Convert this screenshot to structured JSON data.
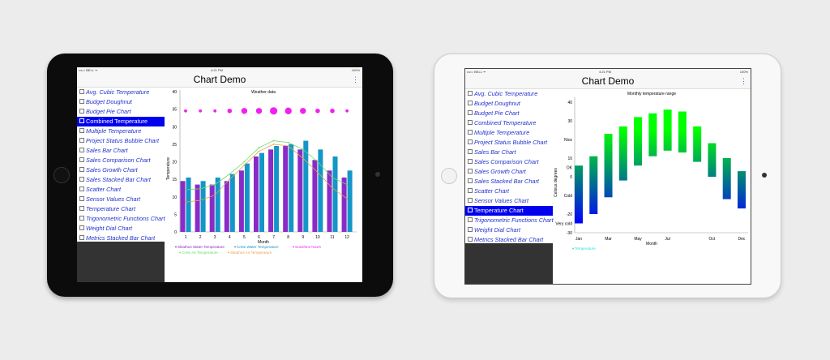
{
  "status": {
    "carrier": "••••○ BELL ᯤ",
    "time": "4:21 PM",
    "battery": "100%"
  },
  "app_title": "Chart Demo",
  "menu_icon": "vertical-dots-icon",
  "sidebar_items": [
    "Avg. Cubic Temperature",
    "Budget Doughnut",
    "Budget Pie Chart",
    "Combined Temperature",
    "Multiple Temperature",
    "Project Status Bubble Chart",
    "Sales Bar Chart",
    "Sales Comparison Chart",
    "Sales Growth Chart",
    "Sales Stacked Bar Chart",
    "Scatter Chart",
    "Sensor Values Chart",
    "Temperature Chart",
    "Trigonometric Functions Chart",
    "Weight Dial Chart",
    "Metrics Stacked Bar Chart"
  ],
  "left_device": {
    "selected": "Combined Temperature"
  },
  "right_device": {
    "selected": "Temperature Chart"
  },
  "chart_data": [
    {
      "type": "bar",
      "title": "Weather data",
      "xlabel": "Month",
      "ylabel": "Temperature",
      "ylim": [
        0,
        40
      ],
      "yticks": [
        0,
        5,
        10,
        15,
        20,
        25,
        30,
        35,
        40
      ],
      "categories": [
        "1",
        "2",
        "3",
        "4",
        "5",
        "6",
        "7",
        "8",
        "9",
        "10",
        "11",
        "12"
      ],
      "series": [
        {
          "name": "Skiathos Water Temperature",
          "kind": "bar",
          "color": "#8a2bc8",
          "values": [
            14.5,
            13.5,
            13.5,
            14.5,
            17.5,
            21.5,
            23.5,
            24.5,
            23.5,
            20.5,
            17.5,
            15.5
          ]
        },
        {
          "name": "Crete Water Temperature",
          "kind": "bar",
          "color": "#1396c8",
          "values": [
            15.5,
            14.5,
            15.5,
            16.5,
            19.5,
            22.5,
            24.5,
            25,
            26,
            23.5,
            21.5,
            17.5
          ]
        },
        {
          "name": "Sunshine hours",
          "kind": "bubble",
          "color": "#ee22ee",
          "y": 34.5,
          "sizes": [
            1,
            1,
            1,
            2,
            3,
            3,
            4,
            3.5,
            3,
            2,
            2,
            1
          ]
        },
        {
          "name": "Crete Air Temperature",
          "kind": "line",
          "color": "#66dd66",
          "values": [
            12,
            12.3,
            13.5,
            16.5,
            20,
            24,
            26,
            25.5,
            23.5,
            20,
            15.5,
            13.5
          ]
        },
        {
          "name": "Skiathos Air Temperature",
          "kind": "line",
          "color": "#e8a050",
          "values": [
            8.5,
            9,
            10.5,
            15,
            19,
            23,
            25,
            24.5,
            21,
            17,
            12.5,
            9.5
          ]
        }
      ],
      "legend": "bottom-left",
      "grid": false
    },
    {
      "type": "range-bar",
      "title": "Monthly temperature range",
      "xlabel": "Month",
      "ylabel": "Celsius degrees",
      "ylim": [
        -30,
        45
      ],
      "yticks": [
        {
          "v": 40,
          "label": "40"
        },
        {
          "v": 30,
          "label": "30"
        },
        {
          "v": 20,
          "label": "Nice"
        },
        {
          "v": 10,
          "label": "10"
        },
        {
          "v": 5,
          "label": "OK"
        },
        {
          "v": 0,
          "label": "0"
        },
        {
          "v": -10,
          "label": "Cold"
        },
        {
          "v": -20,
          "label": "-20"
        },
        {
          "v": -25,
          "label": "Very cold"
        },
        {
          "v": -30,
          "label": "-30"
        }
      ],
      "xticks": [
        {
          "m": 1,
          "label": "Jan"
        },
        {
          "m": 3,
          "label": "Mar"
        },
        {
          "m": 5,
          "label": "May"
        },
        {
          "m": 7,
          "label": "Jul"
        },
        {
          "m": 10,
          "label": "Oct"
        },
        {
          "m": 12,
          "label": "Dec"
        }
      ],
      "series": [
        {
          "name": "Temperature",
          "color": "#22dddd",
          "low": [
            -25,
            -20,
            -11,
            -2,
            6,
            11,
            14,
            13,
            8,
            0,
            -12,
            -17
          ],
          "high": [
            6,
            11,
            23,
            27,
            32,
            34,
            36,
            35,
            27,
            18,
            10,
            3
          ]
        }
      ],
      "gradient": [
        "#0000ff",
        "#00ff00"
      ],
      "legend": "bottom-left"
    }
  ]
}
